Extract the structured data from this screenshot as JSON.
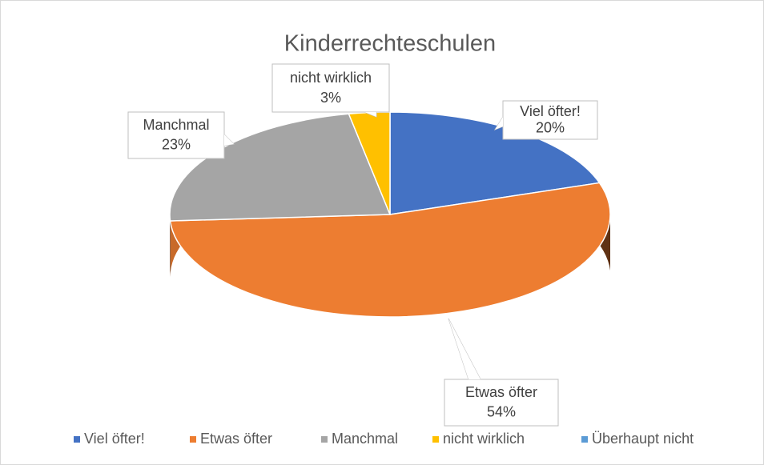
{
  "chart_data": {
    "type": "pie",
    "title": "Kinderrechteschulen",
    "categories": [
      "Viel öfter!",
      "Etwas öfter",
      "Manchmal",
      "nicht wirklich",
      "Überhaupt nicht"
    ],
    "values": [
      20,
      54,
      23,
      3,
      0
    ],
    "value_labels": [
      "20%",
      "54%",
      "23%",
      "3%",
      null
    ],
    "colors": [
      "#4472c4",
      "#ed7d31",
      "#a5a5a5",
      "#ffc000",
      "#5b9bd5"
    ],
    "legend": "bottom"
  }
}
